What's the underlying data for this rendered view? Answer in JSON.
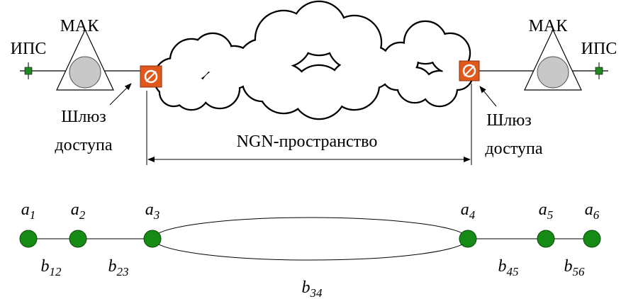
{
  "top": {
    "left": {
      "ips": "ИПС",
      "mak": "МАК",
      "gateway": [
        "Шлюз",
        "доступа"
      ]
    },
    "right": {
      "ips": "ИПС",
      "mak": "МАК",
      "gateway": [
        "Шлюз",
        "доступа"
      ]
    },
    "ngn": "NGN-пространство"
  },
  "nodes": [
    {
      "letter": "a",
      "index": "1"
    },
    {
      "letter": "a",
      "index": "2"
    },
    {
      "letter": "a",
      "index": "3"
    },
    {
      "letter": "a",
      "index": "4"
    },
    {
      "letter": "a",
      "index": "5"
    },
    {
      "letter": "a",
      "index": "6"
    }
  ],
  "edges": [
    {
      "letter": "b",
      "index": "12"
    },
    {
      "letter": "b",
      "index": "23"
    },
    {
      "letter": "b",
      "index": "34"
    },
    {
      "letter": "b",
      "index": "45"
    },
    {
      "letter": "b",
      "index": "56"
    }
  ]
}
